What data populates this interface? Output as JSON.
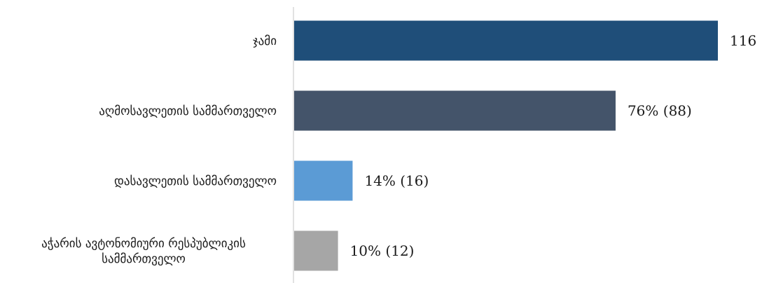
{
  "chart_data": {
    "type": "bar",
    "orientation": "horizontal",
    "categories": [
      [
        "ჯამი"
      ],
      [
        "აღმოსავლეთის სამმართველო"
      ],
      [
        "დასავლეთის სამმართველო"
      ],
      [
        "აჭარის ავტონომიური რესპუბლიკის",
        "სამმართველო"
      ]
    ],
    "values": [
      116,
      88,
      16,
      12
    ],
    "value_labels": [
      "116",
      "76% (88)",
      "14% (16)",
      "10% (12)"
    ],
    "colors": [
      "#1f4e79",
      "#44546a",
      "#5b9bd5",
      "#a6a6a6"
    ],
    "title": "",
    "xlabel": "",
    "ylabel": "",
    "xlim": [
      0,
      116
    ],
    "grid": false,
    "legend": "none"
  }
}
